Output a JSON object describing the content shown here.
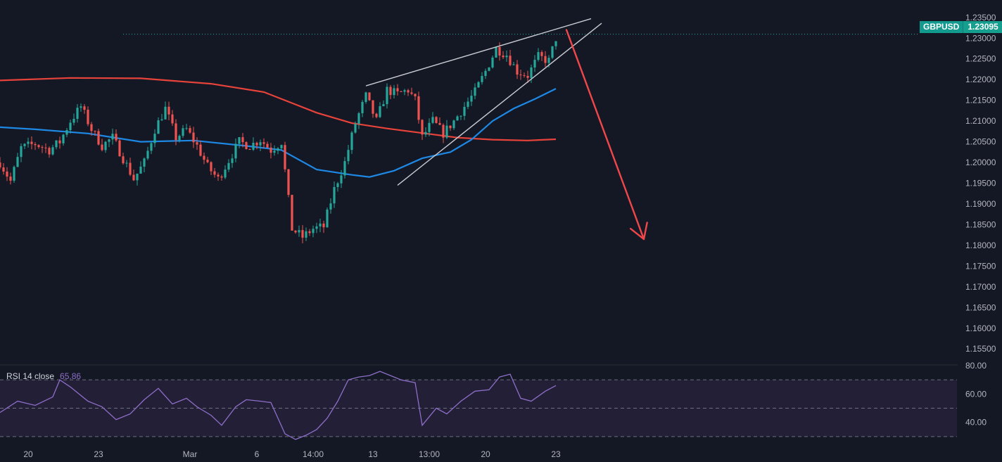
{
  "symbol": "GBPUSD",
  "last_price": "1.23095",
  "rsi": {
    "label": "RSI 14 close",
    "value": "65.86",
    "levels": [
      70,
      50,
      30
    ]
  },
  "colors": {
    "background": "#141824",
    "up": "#26a69a",
    "down": "#ef5350",
    "ma_slow": "#e8433a",
    "ma_fast": "#1e88e5",
    "rsi_line": "#8e6ec8",
    "rsi_band": "#231f37",
    "trendline": "#c8cbd2",
    "arrow": "#f0474a",
    "price_line": "#26a69a"
  },
  "chart_data": [
    {
      "type": "candlestick",
      "title": "",
      "symbol": "GBPUSD",
      "x_tick_labels": [
        "20",
        "23",
        "Mar",
        "6",
        "14:00",
        "13",
        "13:00",
        "20",
        "23"
      ],
      "y_tick_labels": [
        "1.23500",
        "1.23000",
        "1.22500",
        "1.22000",
        "1.21500",
        "1.21000",
        "1.20500",
        "1.20000",
        "1.19500",
        "1.19000",
        "1.18500",
        "1.18000",
        "1.17500",
        "1.17000",
        "1.16500",
        "1.16000",
        "1.15500"
      ],
      "ylim": [
        1.153,
        1.237
      ],
      "last_price": 1.23095,
      "close_path": [
        [
          0,
          1.2
        ],
        [
          3,
          1.1955
        ],
        [
          6,
          1.2035
        ],
        [
          10,
          1.2045
        ],
        [
          14,
          1.203
        ],
        [
          17,
          1.205
        ],
        [
          20,
          1.21
        ],
        [
          23,
          1.2135
        ],
        [
          26,
          1.208
        ],
        [
          29,
          1.204
        ],
        [
          32,
          1.206
        ],
        [
          35,
          1.201
        ],
        [
          38,
          1.196
        ],
        [
          41,
          1.2
        ],
        [
          44,
          1.208
        ],
        [
          47,
          1.213
        ],
        [
          50,
          1.206
        ],
        [
          53,
          1.208
        ],
        [
          56,
          1.204
        ],
        [
          59,
          1.199
        ],
        [
          62,
          1.196
        ],
        [
          65,
          1.2005
        ],
        [
          68,
          1.205
        ],
        [
          71,
          1.204
        ],
        [
          74,
          1.2055
        ],
        [
          77,
          1.203
        ],
        [
          80,
          1.205
        ],
        [
          83,
          1.184
        ],
        [
          86,
          1.182
        ],
        [
          89,
          1.184
        ],
        [
          92,
          1.1845
        ],
        [
          95,
          1.1935
        ],
        [
          98,
          1.2
        ],
        [
          101,
          1.2095
        ],
        [
          104,
          1.216
        ],
        [
          107,
          1.21
        ],
        [
          110,
          1.2175
        ],
        [
          113,
          1.2165
        ],
        [
          116,
          1.2175
        ],
        [
          118,
          1.215
        ],
        [
          120,
          1.206
        ],
        [
          123,
          1.21
        ],
        [
          126,
          1.207
        ],
        [
          129,
          1.21
        ],
        [
          132,
          1.2135
        ],
        [
          135,
          1.217
        ],
        [
          138,
          1.222
        ],
        [
          141,
          1.2275
        ],
        [
          144,
          1.226
        ],
        [
          147,
          1.222
        ],
        [
          150,
          1.221
        ],
        [
          153,
          1.2255
        ],
        [
          156,
          1.2245
        ],
        [
          158,
          1.23
        ]
      ],
      "series": [
        {
          "name": "",
          "color": "#e8433a",
          "values": [
            [
              0,
              1.2198
            ],
            [
              20,
              1.2204
            ],
            [
              40,
              1.2203
            ],
            [
              60,
              1.219
            ],
            [
              75,
              1.217
            ],
            [
              90,
              1.212
            ],
            [
              100,
              1.2095
            ],
            [
              110,
              1.2082
            ],
            [
              120,
              1.2071
            ],
            [
              130,
              1.206
            ],
            [
              140,
              1.2055
            ],
            [
              150,
              1.2053
            ],
            [
              158,
              1.2056
            ]
          ]
        },
        {
          "name": "",
          "color": "#1e88e5",
          "values": [
            [
              0,
              1.2085
            ],
            [
              10,
              1.208
            ],
            [
              25,
              1.207
            ],
            [
              40,
              1.205
            ],
            [
              55,
              1.2053
            ],
            [
              70,
              1.204
            ],
            [
              80,
              1.203
            ],
            [
              90,
              1.1983
            ],
            [
              100,
              1.197
            ],
            [
              105,
              1.1965
            ],
            [
              112,
              1.198
            ],
            [
              120,
              1.201
            ],
            [
              128,
              1.2025
            ],
            [
              134,
              1.2055
            ],
            [
              140,
              1.21
            ],
            [
              146,
              1.213
            ],
            [
              152,
              1.2153
            ],
            [
              158,
              1.2178
            ]
          ]
        }
      ],
      "annotations": [
        {
          "type": "trendline",
          "from": [
            104,
            1.2185
          ],
          "to": [
            168,
            1.2347
          ]
        },
        {
          "type": "trendline",
          "from": [
            113,
            1.1945
          ],
          "to": [
            171,
            1.2336
          ]
        },
        {
          "type": "arrow",
          "from": [
            161,
            1.232
          ],
          "to": [
            183,
            1.1815
          ]
        }
      ]
    },
    {
      "type": "line",
      "title": "RSI 14 close",
      "y_tick_labels": [
        "80.00",
        "60.00",
        "40.00"
      ],
      "ylim": [
        25,
        80
      ],
      "reference_lines": [
        70,
        50,
        30
      ],
      "values": [
        [
          0,
          47
        ],
        [
          5,
          55
        ],
        [
          10,
          52
        ],
        [
          15,
          58
        ],
        [
          17,
          70
        ],
        [
          20,
          65
        ],
        [
          25,
          55
        ],
        [
          29,
          51
        ],
        [
          33,
          42
        ],
        [
          37,
          46
        ],
        [
          41,
          56
        ],
        [
          45,
          64
        ],
        [
          49,
          53
        ],
        [
          53,
          57
        ],
        [
          56,
          51
        ],
        [
          60,
          45
        ],
        [
          63,
          38
        ],
        [
          67,
          51
        ],
        [
          70,
          56
        ],
        [
          74,
          55
        ],
        [
          77,
          54
        ],
        [
          81,
          32
        ],
        [
          84,
          28
        ],
        [
          87,
          31
        ],
        [
          90,
          35
        ],
        [
          93,
          43
        ],
        [
          96,
          55
        ],
        [
          99,
          70
        ],
        [
          102,
          72
        ],
        [
          105,
          73
        ],
        [
          108,
          76
        ],
        [
          111,
          73
        ],
        [
          114,
          70
        ],
        [
          118,
          68
        ],
        [
          120,
          38
        ],
        [
          124,
          50
        ],
        [
          127,
          46
        ],
        [
          131,
          55
        ],
        [
          135,
          62
        ],
        [
          139,
          63
        ],
        [
          142,
          72
        ],
        [
          145,
          74
        ],
        [
          148,
          57
        ],
        [
          151,
          55
        ],
        [
          155,
          62
        ],
        [
          158,
          66
        ]
      ]
    }
  ]
}
